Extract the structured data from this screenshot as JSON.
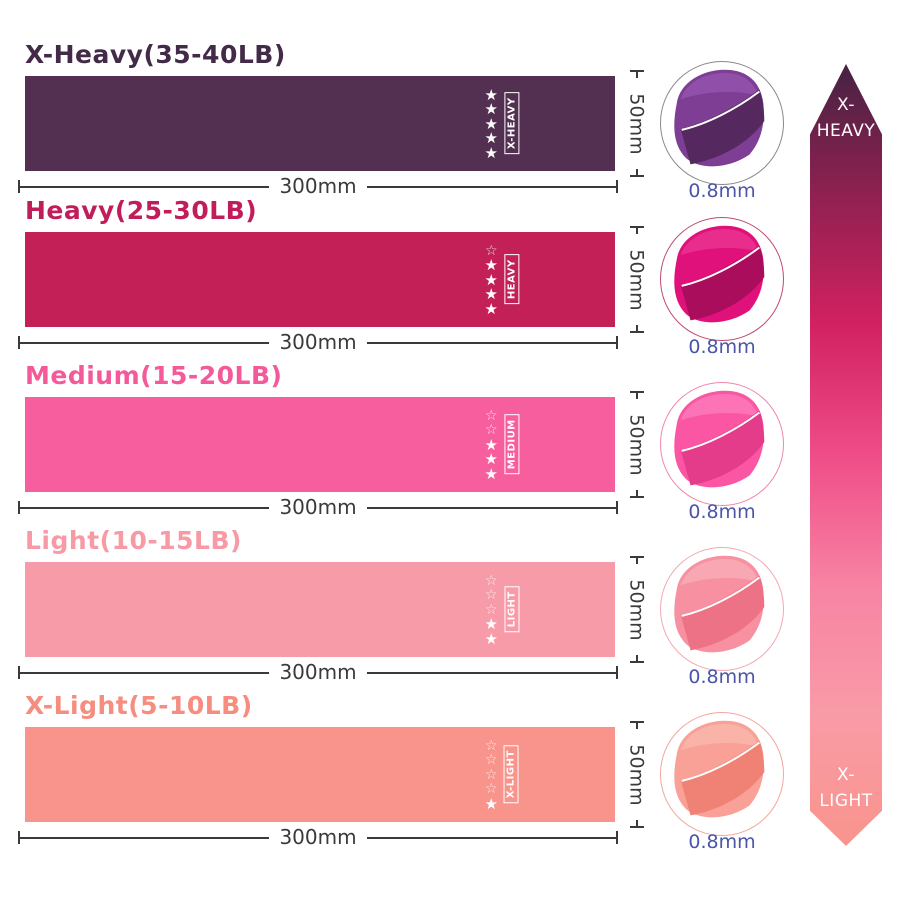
{
  "page": {
    "background": "#ffffff"
  },
  "stars_total": 5,
  "bands": [
    {
      "title": "X-Heavy(35-40LB)",
      "tag": "X-HEAVY",
      "stars_filled": 5,
      "color": "#533051",
      "title_color": "#432a49",
      "width_label": "300mm",
      "height_label": "50mm",
      "thickness_label": "0.8mm",
      "circle": {
        "main": "#7d3e93",
        "dark": "#55285f",
        "light": "#a05cbb",
        "border": "#8a8a8a"
      }
    },
    {
      "title": "Heavy(25-30LB)",
      "tag": "HEAVY",
      "stars_filled": 4,
      "color": "#c32057",
      "title_color": "#c21d5b",
      "width_label": "300mm",
      "height_label": "50mm",
      "thickness_label": "0.8mm",
      "circle": {
        "main": "#e0117a",
        "dark": "#a90d5c",
        "light": "#f0459c",
        "border": "#c04a72"
      }
    },
    {
      "title": "Medium(15-20LB)",
      "tag": "MEDIUM",
      "stars_filled": 3,
      "color": "#f75e9d",
      "title_color": "#f4599a",
      "width_label": "300mm",
      "height_label": "50mm",
      "thickness_label": "0.8mm",
      "circle": {
        "main": "#fb56a3",
        "dark": "#e43b8a",
        "light": "#fd8ec4",
        "border": "#ef87ae"
      }
    },
    {
      "title": "Light(10-15LB)",
      "tag": "LIGHT",
      "stars_filled": 2,
      "color": "#f89ba8",
      "title_color": "#f89aa6",
      "width_label": "300mm",
      "height_label": "50mm",
      "thickness_label": "0.8mm",
      "circle": {
        "main": "#f791a1",
        "dark": "#ee7285",
        "light": "#fbb9c2",
        "border": "#f3a9b0"
      }
    },
    {
      "title": "X-Light(5-10LB)",
      "tag": "X-LIGHT",
      "stars_filled": 1,
      "color": "#f8948b",
      "title_color": "#f68d7f",
      "width_label": "300mm",
      "height_label": "50mm",
      "thickness_label": "0.8mm",
      "circle": {
        "main": "#f9a196",
        "dark": "#f08275",
        "light": "#fcc3ba",
        "border": "#f3a79c"
      }
    }
  ],
  "ribbon": {
    "top_label_lines": [
      "X-",
      "HEAVY"
    ],
    "bottom_label_lines": [
      "X-",
      "LIGHT"
    ],
    "gradient": [
      "#462243",
      "#8f2150",
      "#d22161",
      "#ef4d88",
      "#f783a3",
      "#f99ba7",
      "#f9948c"
    ]
  }
}
